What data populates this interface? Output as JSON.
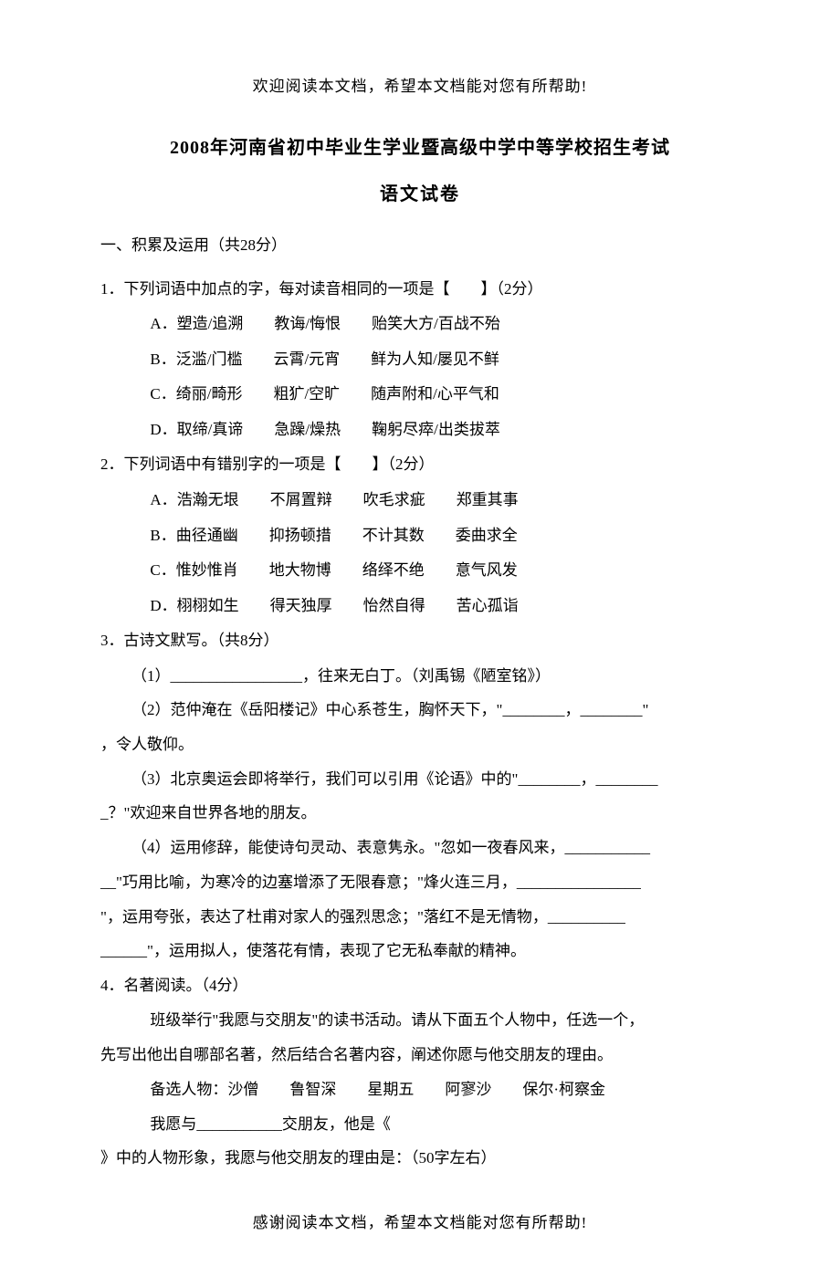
{
  "header_note": "欢迎阅读本文档，希望本文档能对您有所帮助!",
  "title_main": "2008年河南省初中毕业生学业暨高级中学中等学校招生考试",
  "title_sub": "语文试卷",
  "section1_heading": "一、积累及运用（共28分）",
  "q1": {
    "stem": "1．下列词语中加点的字，每对读音相同的一项是【　　】（2分）",
    "optA": "A．塑造/追溯　　教诲/悔恨　　贻笑大方/百战不殆",
    "optB": "B．泛滥/门槛　　云霄/元宵　　鲜为人知/屡见不鲜",
    "optC": "C．绮丽/畸形　　粗犷/空旷　　随声附和/心平气和",
    "optD": "D．取缔/真谛　　急躁/燥热　　鞠躬尽瘁/出类拔萃"
  },
  "q2": {
    "stem": "2．下列词语中有错别字的一项是【　　】（2分）",
    "optA": "A．浩瀚无垠　　不屑置辩　　吹毛求疵　　郑重其事",
    "optB": "B．曲径通幽　　抑扬顿措　　不计其数　　委曲求全",
    "optC": "C．惟妙惟肖　　地大物博　　络绎不绝　　意气风发",
    "optD": "D．栩栩如生　　得天独厚　　怡然自得　　苦心孤诣"
  },
  "q3": {
    "stem": "3．古诗文默写。（共8分）",
    "line1": "（1）_________________，往来无白丁。（刘禹锡《陋室铭》）",
    "line2a": "（2）范仲淹在《岳阳楼记》中心系苍生，胸怀天下，\"________，________\"",
    "line2b": "，令人敬仰。",
    "line3a": "（3）北京奥运会即将举行，我们可以引用《论语》中的\"________，________",
    "line3b": "_？\"欢迎来自世界各地的朋友。",
    "line4a": "（4）运用修辞，能使诗句灵动、表意隽永。\"忽如一夜春风来，___________",
    "line4b": "__\"巧用比喻，为寒冷的边塞增添了无限春意；\"烽火连三月，________________",
    "line4c": "\"，运用夸张，表达了杜甫对家人的强烈思念；\"落红不是无情物，__________",
    "line4d": "______\"，运用拟人，使落花有情，表现了它无私奉献的精神。"
  },
  "q4": {
    "stem": "4．名著阅读。（4分）",
    "para1": "班级举行\"我愿与交朋友\"的读书活动。请从下面五个人物中，任选一个，",
    "para1b": "先写出他出自哪部名著，然后结合名著内容，阐述你愿与他交朋友的理由。",
    "cand": "备选人物：沙僧　　鲁智深　　星期五　　阿寥沙　　保尔·柯察金",
    "fill1": "我愿与___________交朋友，他是《",
    "fill2": "》中的人物形象，我愿与他交朋友的理由是：（50字左右）"
  },
  "footer_note": "感谢阅读本文档，希望本文档能对您有所帮助!"
}
